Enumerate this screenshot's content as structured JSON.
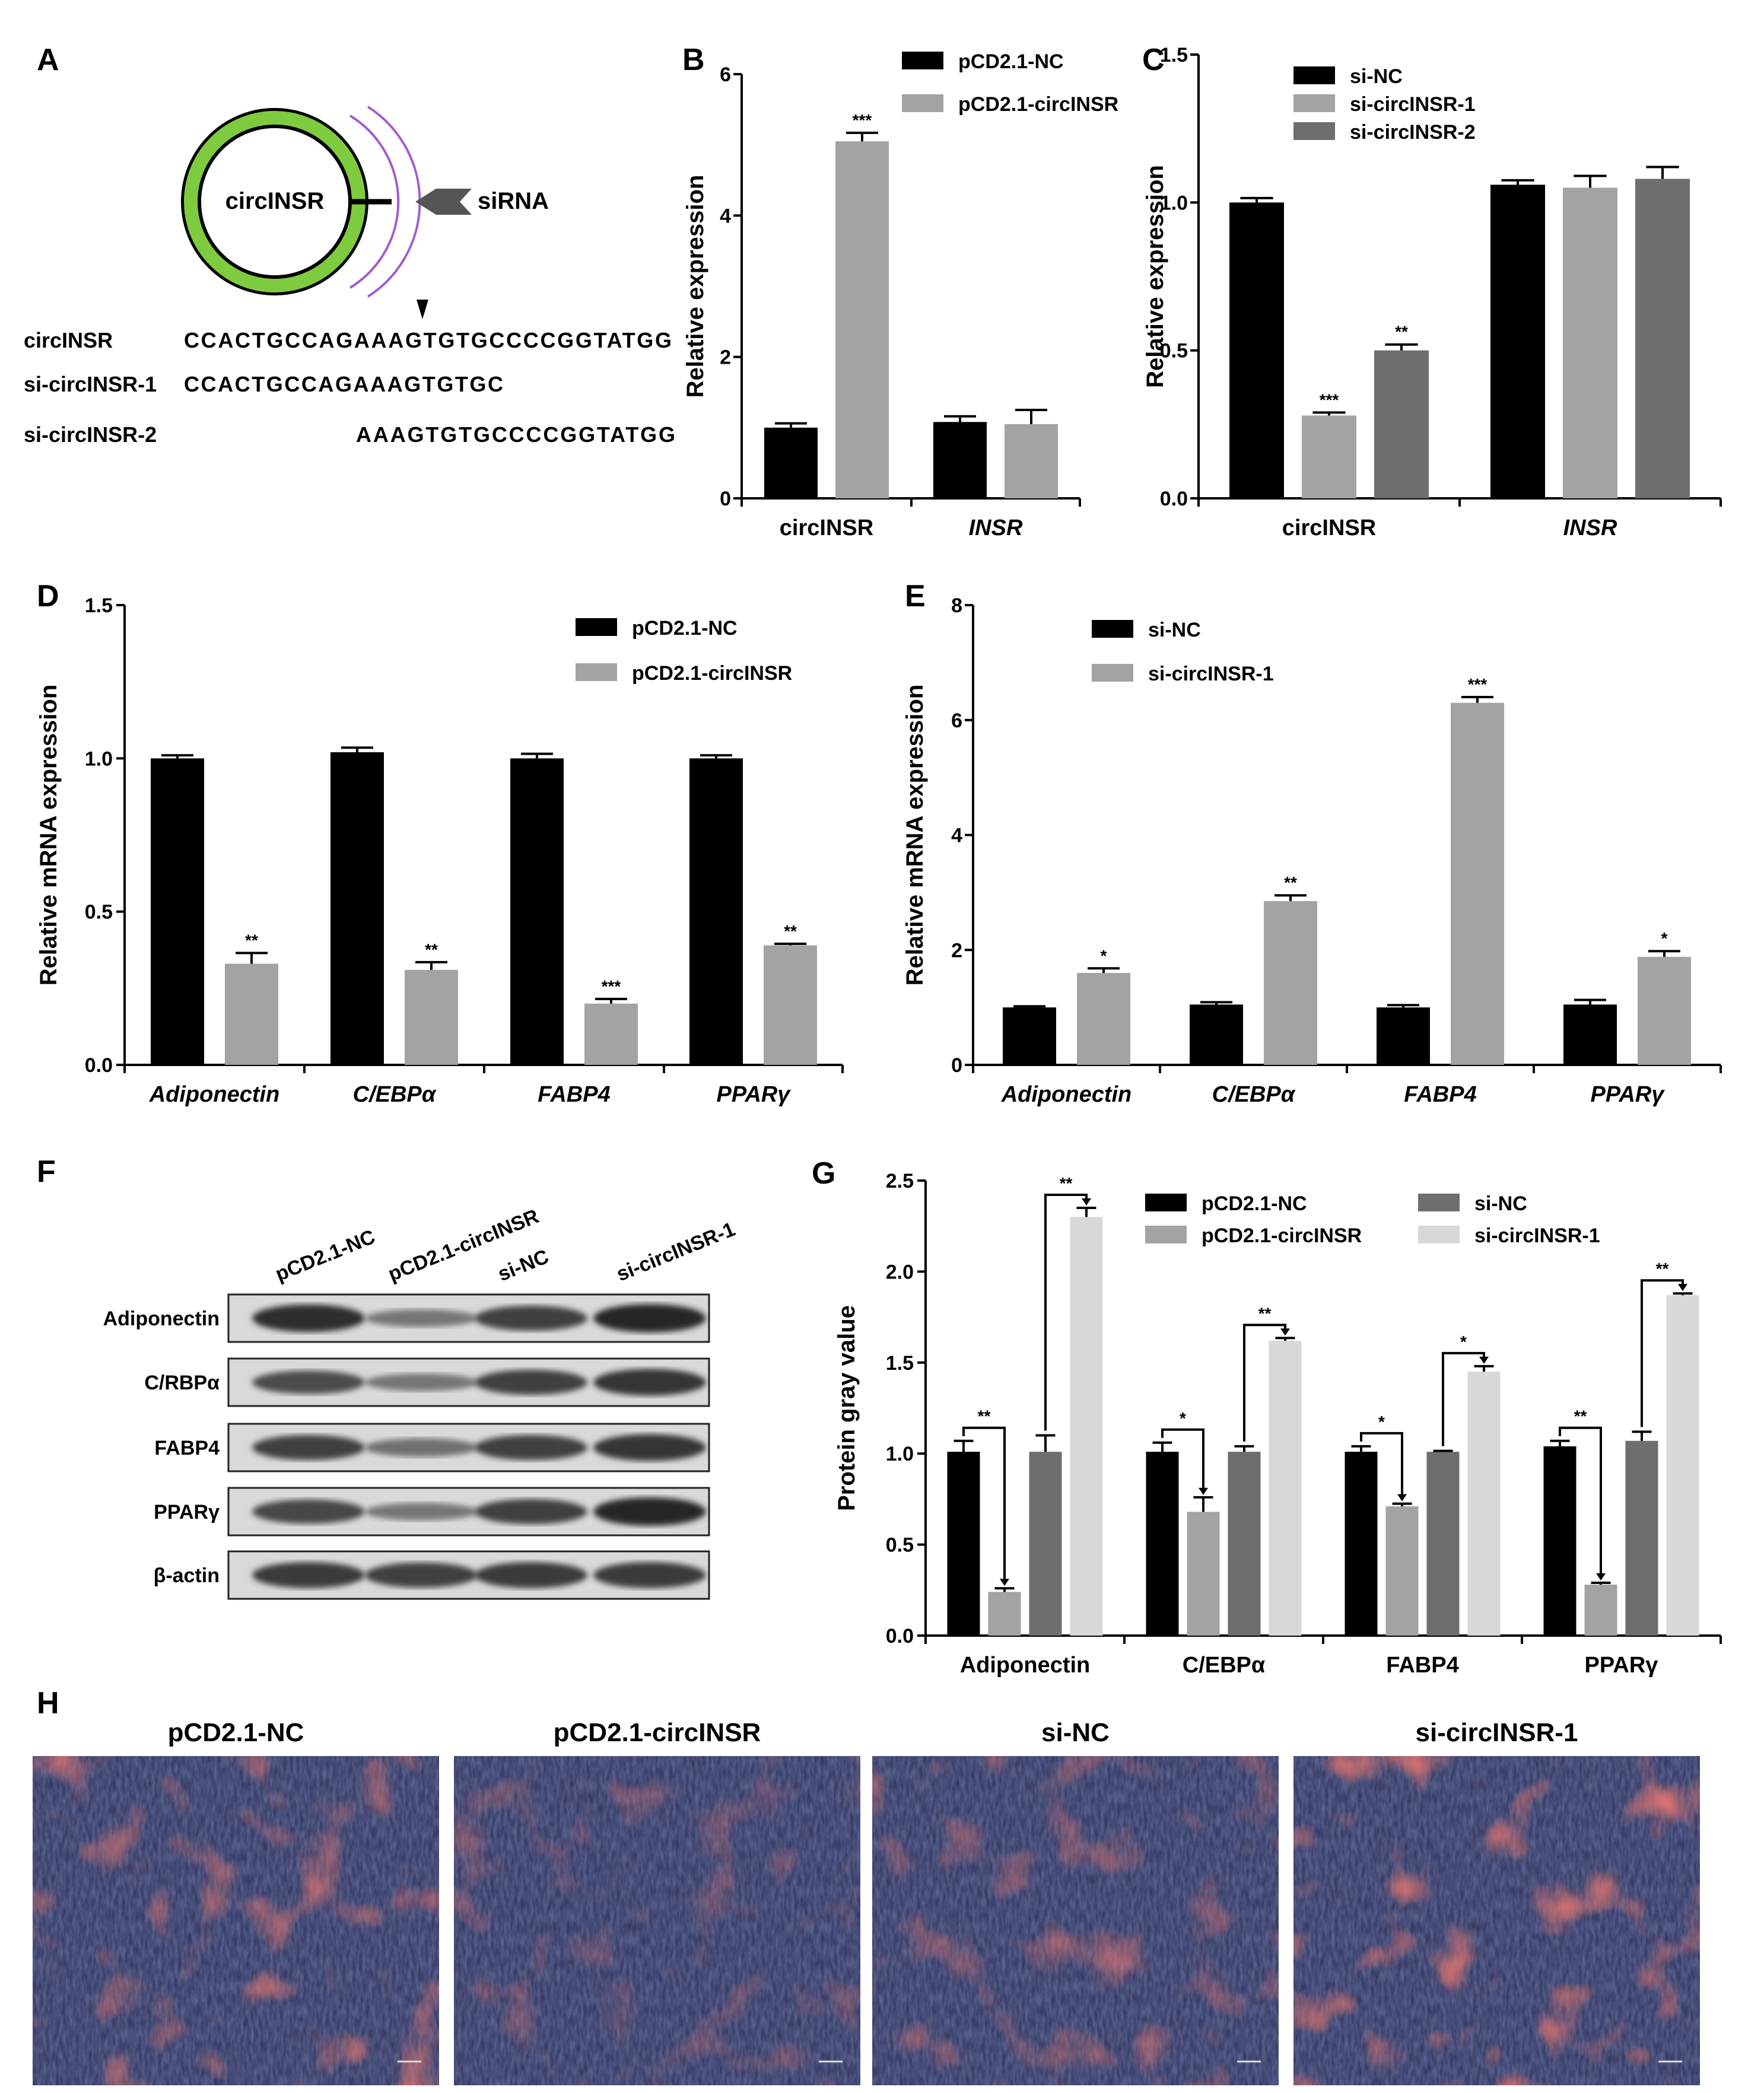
{
  "colors": {
    "black": "#000000",
    "gray": "#a3a3a5",
    "darkgray": "#6e6e6f",
    "lightgray": "#d8d8d8",
    "ring": "#7ecb3f",
    "arc": "#a35bd0",
    "arrow": "#555555"
  },
  "panel_a": {
    "letter": "A",
    "circle_label": "circINSR",
    "sirna_label": "siRNA",
    "sequences": [
      {
        "name": "circINSR",
        "seq": "CCACTGCCAGAAAGTGTGCCCCGGTATGG"
      },
      {
        "name": "si-circINSR-1",
        "seq": "CCACTGCCAGAAAGTGTGC"
      },
      {
        "name": "si-circINSR-2",
        "seq": "AAAGTGTGCCCCGGTATGG"
      }
    ]
  },
  "panel_f": {
    "letter": "F",
    "lanes": [
      "pCD2.1-NC",
      "pCD2.1-circINSR",
      "si-NC",
      "si-circINSR-1"
    ],
    "rows": [
      "Adiponectin",
      "C/RBPα",
      "FABP4",
      "PPARγ",
      "β-actin"
    ]
  },
  "panel_h": {
    "letter": "H",
    "titles": [
      "pCD2.1-NC",
      "pCD2.1-circINSR",
      "si-NC",
      "si-circINSR-1"
    ]
  },
  "chart_data": [
    {
      "panel": "B",
      "type": "bar",
      "categories": [
        "circINSR",
        "INSR"
      ],
      "category_italic": [
        false,
        true
      ],
      "ylabel": "Relative expression",
      "ylim": [
        0,
        6
      ],
      "yticks": [
        0,
        2,
        4,
        6
      ],
      "series": [
        {
          "name": "pCD2.1-NC",
          "color": "black",
          "values": [
            1.0,
            1.08
          ],
          "errors": [
            0.06,
            0.08
          ],
          "sig": [
            "",
            ""
          ]
        },
        {
          "name": "pCD2.1-circINSR",
          "color": "gray",
          "values": [
            5.05,
            1.05
          ],
          "errors": [
            0.12,
            0.2
          ],
          "sig": [
            "***",
            ""
          ]
        }
      ],
      "legend": "top-right"
    },
    {
      "panel": "C",
      "type": "bar",
      "categories": [
        "circINSR",
        "INSR"
      ],
      "category_italic": [
        false,
        true
      ],
      "ylabel": "Relative expression",
      "ylim": [
        0,
        1.5
      ],
      "yticks": [
        "0.0",
        "0.5",
        "1.0",
        "1.5"
      ],
      "series": [
        {
          "name": "si-NC",
          "color": "black",
          "values": [
            1.0,
            1.06
          ],
          "errors": [
            0.015,
            0.015
          ],
          "sig": [
            "",
            ""
          ]
        },
        {
          "name": "si-circINSR-1",
          "color": "gray",
          "values": [
            0.28,
            1.05
          ],
          "errors": [
            0.01,
            0.04
          ],
          "sig": [
            "***",
            ""
          ]
        },
        {
          "name": "si-circINSR-2",
          "color": "darkgray",
          "values": [
            0.5,
            1.08
          ],
          "errors": [
            0.02,
            0.04
          ],
          "sig": [
            "**",
            ""
          ]
        }
      ],
      "legend": "top-left"
    },
    {
      "panel": "D",
      "type": "bar",
      "categories": [
        "Adiponectin",
        "C/EBPα",
        "FABP4",
        "PPARγ"
      ],
      "category_italic": [
        true,
        true,
        true,
        true
      ],
      "ylabel": "Relative mRNA expression",
      "ylim": [
        0,
        1.5
      ],
      "yticks": [
        "0.0",
        "0.5",
        "1.0",
        "1.5"
      ],
      "series": [
        {
          "name": "pCD2.1-NC",
          "color": "black",
          "values": [
            1.0,
            1.02,
            1.0,
            1.0
          ],
          "errors": [
            0.01,
            0.015,
            0.015,
            0.01
          ],
          "sig": [
            "",
            "",
            "",
            ""
          ]
        },
        {
          "name": "pCD2.1-circINSR",
          "color": "gray",
          "values": [
            0.33,
            0.31,
            0.2,
            0.39
          ],
          "errors": [
            0.035,
            0.025,
            0.015,
            0.005
          ],
          "sig": [
            "**",
            "**",
            "***",
            "**"
          ]
        }
      ],
      "legend": "top-right"
    },
    {
      "panel": "E",
      "type": "bar",
      "categories": [
        "Adiponectin",
        "C/EBPα",
        "FABP4",
        "PPARγ"
      ],
      "category_italic": [
        true,
        true,
        true,
        true
      ],
      "ylabel": "Relative mRNA expression",
      "ylim": [
        0,
        8
      ],
      "yticks": [
        0,
        2,
        4,
        6,
        8
      ],
      "series": [
        {
          "name": "si-NC",
          "color": "black",
          "values": [
            1.0,
            1.05,
            1.0,
            1.05
          ],
          "errors": [
            0.02,
            0.04,
            0.04,
            0.08
          ],
          "sig": [
            "",
            "",
            "",
            ""
          ]
        },
        {
          "name": "si-circINSR-1",
          "color": "gray",
          "values": [
            1.6,
            2.85,
            6.3,
            1.88
          ],
          "errors": [
            0.08,
            0.1,
            0.1,
            0.1
          ],
          "sig": [
            "*",
            "**",
            "***",
            "*"
          ]
        }
      ],
      "legend": "top-left"
    },
    {
      "panel": "G",
      "type": "bar",
      "categories": [
        "Adiponectin",
        "C/EBPα",
        "FABP4",
        "PPARγ"
      ],
      "category_italic": [
        false,
        false,
        false,
        false
      ],
      "ylabel": "Protein gray value",
      "ylim": [
        0,
        2.5
      ],
      "yticks": [
        "0.0",
        "0.5",
        "1.0",
        "1.5",
        "2.0",
        "2.5"
      ],
      "series": [
        {
          "name": "pCD2.1-NC",
          "color": "black",
          "values": [
            1.01,
            1.01,
            1.01,
            1.04
          ],
          "errors": [
            0.06,
            0.05,
            0.03,
            0.03
          ]
        },
        {
          "name": "pCD2.1-circINSR",
          "color": "gray",
          "values": [
            0.24,
            0.68,
            0.71,
            0.28
          ],
          "errors": [
            0.02,
            0.08,
            0.015,
            0.01
          ]
        },
        {
          "name": "si-NC",
          "color": "darkgray",
          "values": [
            1.01,
            1.01,
            1.01,
            1.07
          ],
          "errors": [
            0.09,
            0.03,
            0.005,
            0.05
          ]
        },
        {
          "name": "si-circINSR-1",
          "color": "lightgray",
          "values": [
            2.3,
            1.62,
            1.45,
            1.87
          ],
          "errors": [
            0.05,
            0.015,
            0.03,
            0.01
          ]
        }
      ],
      "brackets": [
        {
          "cat": 0,
          "from": 0,
          "to": 1,
          "label": "**"
        },
        {
          "cat": 0,
          "from": 2,
          "to": 3,
          "label": "**"
        },
        {
          "cat": 1,
          "from": 0,
          "to": 1,
          "label": "*"
        },
        {
          "cat": 1,
          "from": 2,
          "to": 3,
          "label": "**"
        },
        {
          "cat": 2,
          "from": 0,
          "to": 1,
          "label": "*"
        },
        {
          "cat": 2,
          "from": 2,
          "to": 3,
          "label": "*"
        },
        {
          "cat": 3,
          "from": 0,
          "to": 1,
          "label": "**"
        },
        {
          "cat": 3,
          "from": 2,
          "to": 3,
          "label": "**"
        }
      ],
      "legend": "top-center"
    }
  ]
}
